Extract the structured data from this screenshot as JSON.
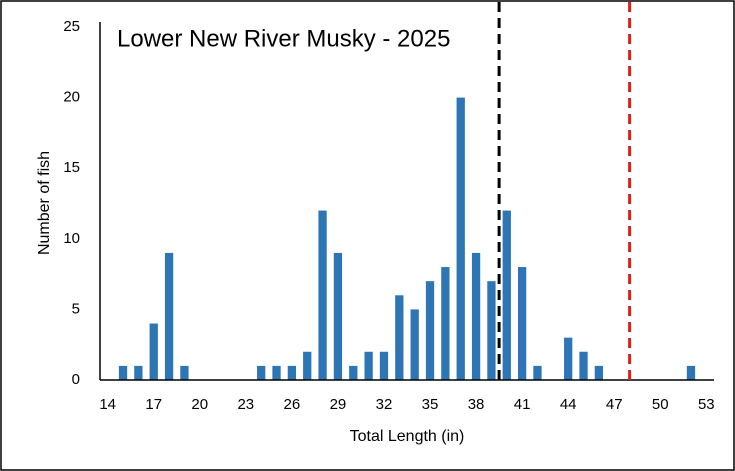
{
  "chart_data": {
    "type": "bar",
    "title": "Lower New River Musky - 2025",
    "x_label": "Total Length (in)",
    "y_label": "Number of fish",
    "x": [
      14,
      15,
      16,
      17,
      18,
      19,
      20,
      21,
      22,
      23,
      24,
      25,
      26,
      27,
      28,
      29,
      30,
      31,
      32,
      33,
      34,
      35,
      36,
      37,
      38,
      39,
      40,
      41,
      42,
      43,
      44,
      45,
      46,
      47,
      48,
      49,
      50,
      51,
      52,
      53
    ],
    "values": [
      0,
      1,
      1,
      4,
      9,
      1,
      0,
      0,
      0,
      0,
      1,
      1,
      1,
      2,
      12,
      9,
      1,
      2,
      2,
      6,
      5,
      7,
      8,
      20,
      9,
      7,
      12,
      8,
      1,
      0,
      3,
      2,
      1,
      0,
      0,
      0,
      0,
      0,
      1,
      0
    ],
    "color": "#2e75b6",
    "xlim": [
      13.5,
      53.5
    ],
    "xticks": [
      14,
      17,
      20,
      23,
      26,
      29,
      32,
      35,
      38,
      41,
      44,
      47,
      50,
      53
    ],
    "ylim": [
      0,
      25
    ],
    "yticks": [
      0,
      5,
      10,
      15,
      20,
      25
    ],
    "grid": false,
    "reference_lines": [
      {
        "value": 39.5,
        "color": "#000000"
      },
      {
        "value": 48,
        "color": "#e0201c"
      }
    ]
  }
}
